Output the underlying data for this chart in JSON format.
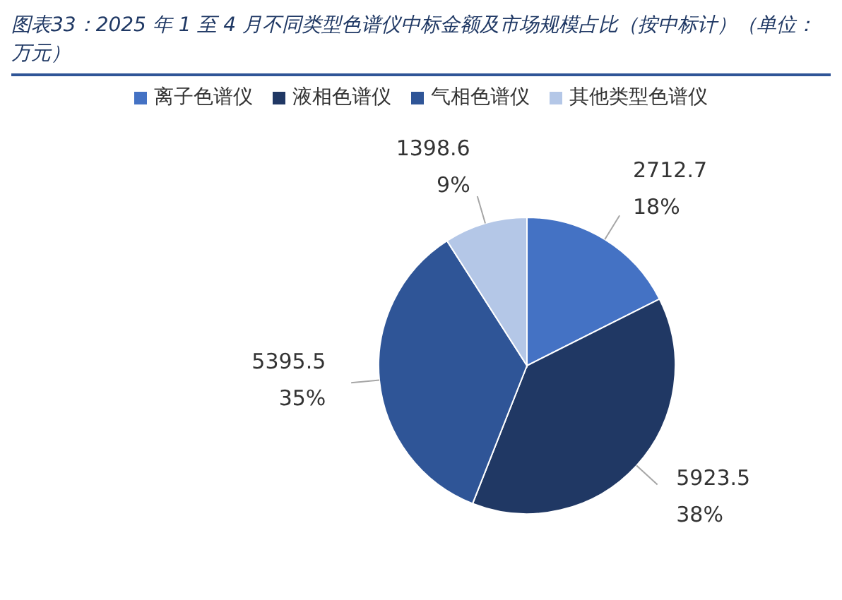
{
  "chart_data": {
    "type": "pie",
    "title": "图表33：2025 年 1 至 4 月不同类型色谱仪中标金额及市场规模占比（按中标计）（单位：万元）",
    "categories": [
      "离子色谱仪",
      "液相色谱仪",
      "气相色谱仪",
      "其他类型色谱仪"
    ],
    "values": [
      2712.7,
      5923.5,
      5395.5,
      1398.6
    ],
    "colors": [
      "#4472c4",
      "#203864",
      "#2f5597",
      "#b4c7e7"
    ],
    "value_labels": [
      "2712.7\n18%",
      "5923.5\n38%",
      "5395.5\n35%",
      "1398.6\n9%"
    ],
    "legend": "top"
  }
}
